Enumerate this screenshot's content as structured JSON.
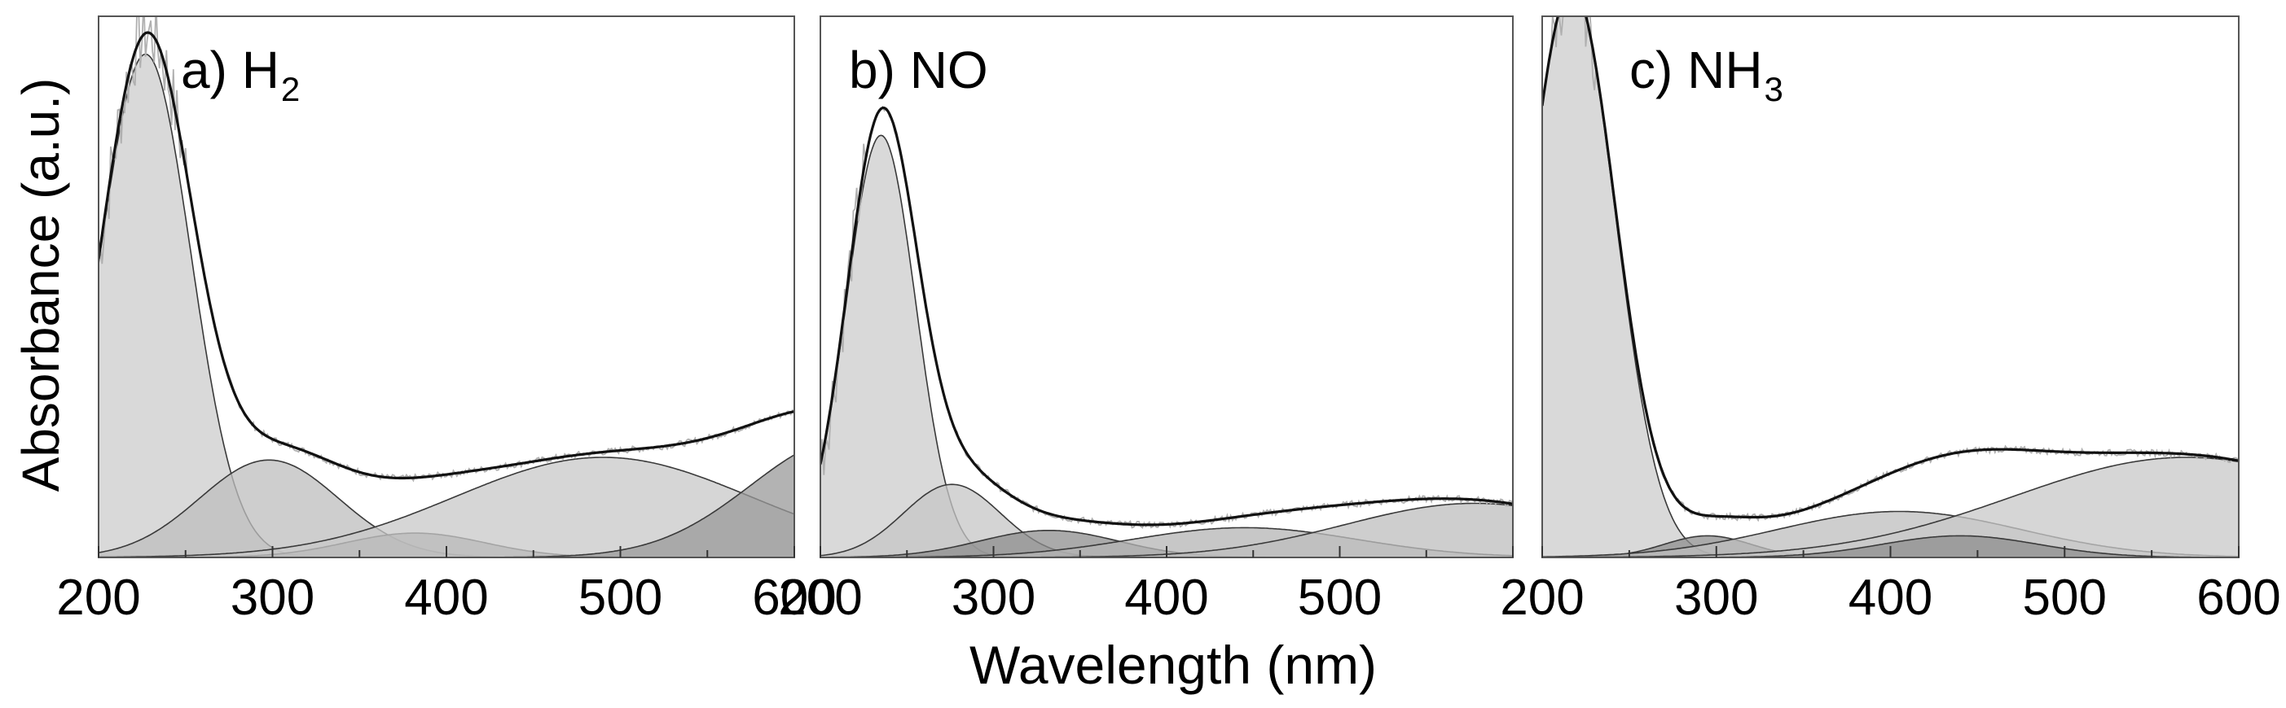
{
  "chart_data": [
    {
      "type": "area",
      "panel_label": "a) H",
      "panel_subscript": "2",
      "x_range": [
        200,
        600
      ],
      "ylim": [
        0,
        1
      ],
      "x_ticks": [
        "200",
        "300",
        "400",
        "500",
        "600"
      ],
      "minor_tick_step": 50,
      "gaussians": [
        {
          "name": "band-1",
          "center": 227,
          "height": 0.93,
          "width": 26,
          "fill": "#cccccc"
        },
        {
          "name": "band-2",
          "center": 298,
          "height": 0.18,
          "width": 40,
          "fill": "#bdbdbd"
        },
        {
          "name": "band-3",
          "center": 382,
          "height": 0.045,
          "width": 40,
          "fill": "#8e8e8e"
        },
        {
          "name": "band-4",
          "center": 490,
          "height": 0.185,
          "width": 85,
          "fill": "#c8c8c8"
        },
        {
          "name": "band-5",
          "center": 630,
          "height": 0.22,
          "width": 55,
          "fill": "#9a9a9a"
        }
      ],
      "raw_noise": {
        "x_start": 200,
        "x_end": 250,
        "amplitude": 0.07
      }
    },
    {
      "type": "area",
      "panel_label": "b) NO",
      "panel_subscript": "",
      "x_range": [
        200,
        600
      ],
      "ylim": [
        0,
        1
      ],
      "x_ticks": [
        "200",
        "300",
        "400",
        "500"
      ],
      "minor_tick_step": 50,
      "gaussians": [
        {
          "name": "band-1",
          "center": 235,
          "height": 0.78,
          "width": 20,
          "fill": "#cccccc"
        },
        {
          "name": "band-2",
          "center": 276,
          "height": 0.135,
          "width": 28,
          "fill": "#c6c6c6"
        },
        {
          "name": "band-3",
          "center": 332,
          "height": 0.05,
          "width": 40,
          "fill": "#8e8e8e"
        },
        {
          "name": "band-4",
          "center": 445,
          "height": 0.055,
          "width": 65,
          "fill": "#b4b4b4"
        },
        {
          "name": "band-5",
          "center": 578,
          "height": 0.1,
          "width": 75,
          "fill": "#bdbdbd"
        }
      ],
      "raw_noise": {
        "x_start": 200,
        "x_end": 225,
        "amplitude": 0.06
      }
    },
    {
      "type": "area",
      "panel_label": "c) NH",
      "panel_subscript": "3",
      "x_range": [
        200,
        600
      ],
      "ylim": [
        0,
        1
      ],
      "x_ticks": [
        "200",
        "300",
        "400",
        "500",
        "600"
      ],
      "minor_tick_step": 50,
      "gaussians": [
        {
          "name": "band-1",
          "center": 217,
          "height": 1.05,
          "width": 25,
          "fill": "#cccccc"
        },
        {
          "name": "band-2",
          "center": 295,
          "height": 0.04,
          "width": 25,
          "fill": "#8e8e8e"
        },
        {
          "name": "band-3",
          "center": 405,
          "height": 0.085,
          "width": 70,
          "fill": "#bdbdbd"
        },
        {
          "name": "band-4",
          "center": 570,
          "height": 0.185,
          "width": 100,
          "fill": "#c8c8c8"
        },
        {
          "name": "band-5",
          "center": 440,
          "height": 0.04,
          "width": 45,
          "fill": "#8e8e8e"
        }
      ],
      "raw_noise": {
        "x_start": 205,
        "x_end": 230,
        "amplitude": 0.06
      }
    }
  ],
  "xlabel": "Wavelength (nm)",
  "ylabel": "Absorbance (a.u.)"
}
